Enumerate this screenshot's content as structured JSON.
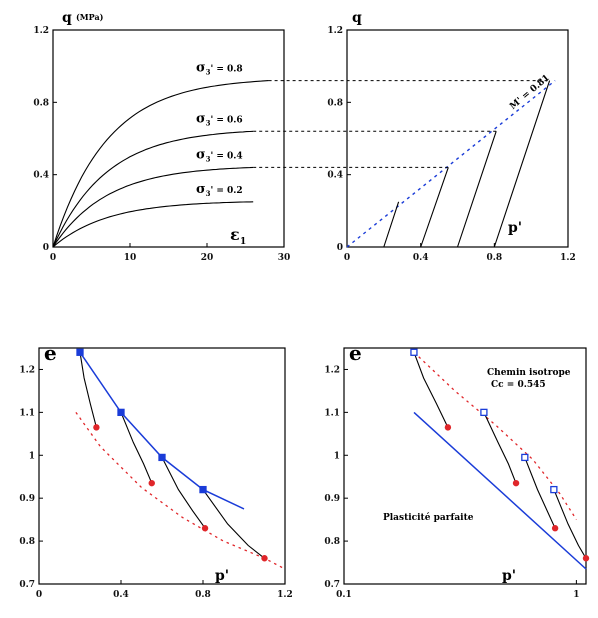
{
  "chart_data": [
    {
      "id": "q-eps",
      "type": "line",
      "ylabel": "q",
      "yunit": "(MPa)",
      "xlabel_main": "ε",
      "xlabel_sub": "1",
      "xlim": [
        0,
        30
      ],
      "ylim": [
        0,
        1.2
      ],
      "xticks": [
        "0",
        "10",
        "20",
        "30"
      ],
      "yticks": [
        "0",
        "0.4",
        "0.8",
        "1.2"
      ],
      "series": [
        {
          "name": "σ3' = 0.8",
          "label_text": "σ3' = 0.8",
          "label_main": "σ",
          "label_sub": "3",
          "label_rest": "' = 0.8",
          "qmax": 0.92,
          "xend": 28
        },
        {
          "name": "σ3' = 0.6",
          "label_text": "σ3' = 0.6",
          "label_main": "σ",
          "label_sub": "3",
          "label_rest": "' = 0.6",
          "qmax": 0.64,
          "xend": 26
        },
        {
          "name": "σ3' = 0.4",
          "label_text": "σ3' = 0.4",
          "label_main": "σ",
          "label_sub": "3",
          "label_rest": "' = 0.4",
          "qmax": 0.44,
          "xend": 26
        },
        {
          "name": "σ3' = 0.2",
          "label_text": "σ3' = 0.2",
          "label_main": "σ",
          "label_sub": "3",
          "label_rest": "' = 0.2",
          "qmax": 0.25,
          "xend": 26
        }
      ]
    },
    {
      "id": "q-p",
      "type": "line",
      "ylabel": "q",
      "xlabel": "p'",
      "xlim": [
        0,
        1.2
      ],
      "ylim": [
        0,
        1.2
      ],
      "xticks": [
        "0",
        "0.4",
        "0.8",
        "1.2"
      ],
      "yticks": [
        "0",
        "0.4",
        "0.8",
        "1.2"
      ],
      "annotation": "M' = 0.81",
      "critical_line": [
        [
          0.0,
          0.0
        ],
        [
          1.13,
          0.92
        ]
      ],
      "paths": [
        [
          [
            0.2,
            0.0
          ],
          [
            0.28,
            0.25
          ]
        ],
        [
          [
            0.4,
            0.0
          ],
          [
            0.55,
            0.44
          ]
        ],
        [
          [
            0.6,
            0.0
          ],
          [
            0.81,
            0.64
          ]
        ],
        [
          [
            0.8,
            0.0
          ],
          [
            1.1,
            0.92
          ]
        ]
      ]
    },
    {
      "id": "e-p-linear",
      "type": "line",
      "ylabel": "e",
      "xlabel": "p'",
      "xlim": [
        0,
        1.2
      ],
      "ylim": [
        0.7,
        1.25
      ],
      "xticks": [
        "0",
        "0.4",
        "0.8",
        "1.2"
      ],
      "yticks": [
        "0.7",
        "0.8",
        "0.9",
        "1",
        "1.1",
        "1.2"
      ],
      "isotropic_line": [
        [
          0.2,
          1.24
        ],
        [
          0.4,
          1.1
        ],
        [
          0.6,
          0.995
        ],
        [
          0.8,
          0.92
        ],
        [
          1.0,
          0.875
        ]
      ],
      "square_points": [
        [
          0.2,
          1.24
        ],
        [
          0.4,
          1.1
        ],
        [
          0.6,
          0.995
        ],
        [
          0.8,
          0.92
        ]
      ],
      "dot_points": [
        [
          0.28,
          1.065
        ],
        [
          0.55,
          0.935
        ],
        [
          0.81,
          0.83
        ],
        [
          1.1,
          0.76
        ]
      ],
      "critical_curve": [
        [
          0.18,
          1.1
        ],
        [
          0.3,
          1.02
        ],
        [
          0.5,
          0.925
        ],
        [
          0.7,
          0.855
        ],
        [
          0.9,
          0.8
        ],
        [
          1.1,
          0.76
        ],
        [
          1.2,
          0.735
        ]
      ],
      "paths": [
        [
          [
            0.2,
            1.24
          ],
          [
            0.22,
            1.18
          ],
          [
            0.25,
            1.12
          ],
          [
            0.28,
            1.065
          ]
        ],
        [
          [
            0.4,
            1.1
          ],
          [
            0.46,
            1.03
          ],
          [
            0.51,
            0.98
          ],
          [
            0.55,
            0.935
          ]
        ],
        [
          [
            0.6,
            0.995
          ],
          [
            0.68,
            0.92
          ],
          [
            0.75,
            0.87
          ],
          [
            0.81,
            0.83
          ]
        ],
        [
          [
            0.8,
            0.92
          ],
          [
            0.92,
            0.84
          ],
          [
            1.02,
            0.79
          ],
          [
            1.1,
            0.76
          ]
        ]
      ]
    },
    {
      "id": "e-p-log",
      "type": "line",
      "ylabel": "e",
      "xlabel": "p'",
      "xscale": "log",
      "xlim": [
        0.1,
        1.1
      ],
      "ylim": [
        0.7,
        1.25
      ],
      "xticks": [
        "0.1",
        "1"
      ],
      "yticks": [
        "0.7",
        "0.8",
        "0.9",
        "1",
        "1.1",
        "1.2"
      ],
      "annotation_path_title": "Chemin isotrope",
      "annotation_cc": "Cc = 0.545",
      "annotation_plasticity": "Plasticité parfaite",
      "isotropic_line": [
        [
          0.2,
          1.1
        ],
        [
          1.1,
          0.735
        ]
      ],
      "square_points": [
        [
          0.2,
          1.24
        ],
        [
          0.4,
          1.1
        ],
        [
          0.6,
          0.995
        ],
        [
          0.8,
          0.92
        ]
      ],
      "dot_points": [
        [
          0.28,
          1.065
        ],
        [
          0.55,
          0.935
        ],
        [
          0.81,
          0.83
        ],
        [
          1.1,
          0.76
        ]
      ],
      "critical_curve": [
        [
          0.2,
          1.24
        ],
        [
          0.3,
          1.15
        ],
        [
          0.45,
          1.07
        ],
        [
          0.65,
          0.99
        ],
        [
          0.85,
          0.91
        ],
        [
          1.0,
          0.85
        ]
      ],
      "paths": [
        [
          [
            0.2,
            1.24
          ],
          [
            0.22,
            1.18
          ],
          [
            0.25,
            1.12
          ],
          [
            0.28,
            1.065
          ]
        ],
        [
          [
            0.4,
            1.1
          ],
          [
            0.46,
            1.03
          ],
          [
            0.51,
            0.98
          ],
          [
            0.55,
            0.935
          ]
        ],
        [
          [
            0.6,
            0.995
          ],
          [
            0.68,
            0.92
          ],
          [
            0.75,
            0.87
          ],
          [
            0.81,
            0.83
          ]
        ],
        [
          [
            0.8,
            0.92
          ],
          [
            0.92,
            0.84
          ],
          [
            1.02,
            0.79
          ],
          [
            1.1,
            0.76
          ]
        ]
      ]
    }
  ],
  "colors": {
    "axis": "#000000",
    "curve": "#000000",
    "dotted": "#000000",
    "blue": "#1a3cd8",
    "red": "#e0262a",
    "red_marker": "#e0262a",
    "blue_marker": "#1a3cd8"
  }
}
